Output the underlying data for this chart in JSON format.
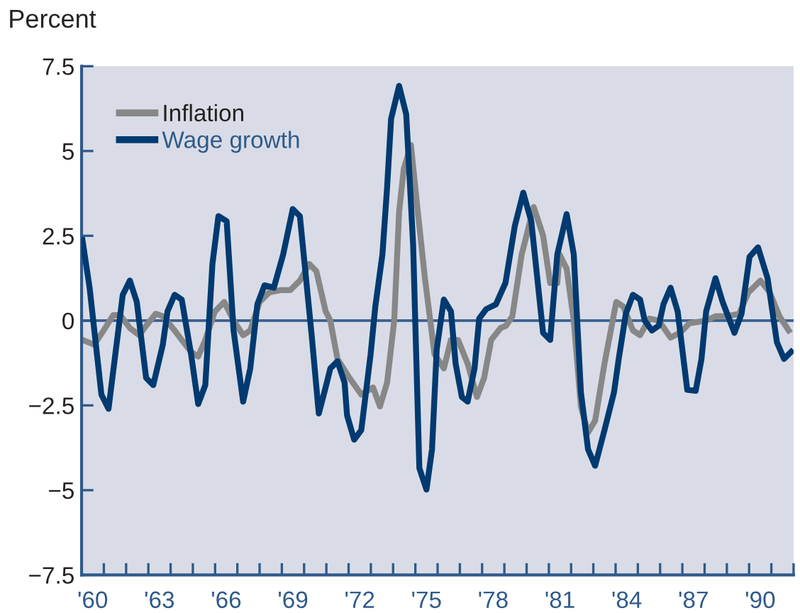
{
  "chart_data": {
    "type": "line",
    "ylabel": "Percent",
    "xlim": [
      1959.5,
      1991.5
    ],
    "ylim": [
      -7.5,
      7.5
    ],
    "yticks": [
      7.5,
      5,
      2.5,
      0,
      {
        "value": -2.5,
        "label": "−2.5"
      },
      {
        "value": -5,
        "label": "−5"
      },
      {
        "value": -7.5,
        "label": "−7.5"
      }
    ],
    "xticks": [
      {
        "value": 1959.5,
        "label": null
      },
      {
        "value": 1960.5,
        "label": null
      },
      {
        "value": 1961.5,
        "label": null
      },
      {
        "value": 1962.5,
        "label": null
      },
      {
        "value": 1963.5,
        "label": null
      },
      {
        "value": 1964.5,
        "label": null
      },
      {
        "value": 1965.5,
        "label": null
      },
      {
        "value": 1966.5,
        "label": null
      },
      {
        "value": 1967.5,
        "label": null
      },
      {
        "value": 1968.5,
        "label": null
      },
      {
        "value": 1969.5,
        "label": null
      },
      {
        "value": 1970.5,
        "label": null
      },
      {
        "value": 1971.5,
        "label": null
      },
      {
        "value": 1972.5,
        "label": null
      },
      {
        "value": 1973.5,
        "label": null
      },
      {
        "value": 1974.5,
        "label": null
      },
      {
        "value": 1975.5,
        "label": null
      },
      {
        "value": 1976.5,
        "label": null
      },
      {
        "value": 1977.5,
        "label": null
      },
      {
        "value": 1978.5,
        "label": null
      },
      {
        "value": 1979.5,
        "label": null
      },
      {
        "value": 1980.5,
        "label": null
      },
      {
        "value": 1981.5,
        "label": null
      },
      {
        "value": 1982.5,
        "label": null
      },
      {
        "value": 1983.5,
        "label": null
      },
      {
        "value": 1984.5,
        "label": null
      },
      {
        "value": 1985.5,
        "label": null
      },
      {
        "value": 1986.5,
        "label": null
      },
      {
        "value": 1987.5,
        "label": null
      },
      {
        "value": 1988.5,
        "label": null
      },
      {
        "value": 1989.5,
        "label": null
      },
      {
        "value": 1990.5,
        "label": null
      },
      {
        "value": 1991.5,
        "label": null
      },
      {
        "value": 1960,
        "label": "'60"
      },
      {
        "value": 1963,
        "label": "'63"
      },
      {
        "value": 1966,
        "label": "'66"
      },
      {
        "value": 1969,
        "label": "'69"
      },
      {
        "value": 1972,
        "label": "'72"
      },
      {
        "value": 1975,
        "label": "'75"
      },
      {
        "value": 1978,
        "label": "'78"
      },
      {
        "value": 1981,
        "label": "'81"
      },
      {
        "value": 1984,
        "label": "'84"
      },
      {
        "value": 1987,
        "label": "'87"
      },
      {
        "value": 1990,
        "label": "'90"
      }
    ],
    "grid": false,
    "legend": "top left",
    "line_style": "solid",
    "marker": "none",
    "ref_lines": [
      {
        "axis": "y",
        "value": 0,
        "color": "#3a6090"
      }
    ],
    "series": [
      {
        "name": "Inflation",
        "color": "#878787",
        "x": [
          1959.54,
          1960.07,
          1960.49,
          1960.92,
          1961.24,
          1961.67,
          1962.09,
          1962.4,
          1962.83,
          1963.15,
          1963.68,
          1964.0,
          1964.42,
          1964.74,
          1965.06,
          1965.49,
          1965.91,
          1966.33,
          1966.76,
          1967.08,
          1967.5,
          1967.93,
          1968.46,
          1968.88,
          1969.31,
          1969.73,
          1970.05,
          1970.47,
          1970.68,
          1971.0,
          1971.54,
          1972.07,
          1972.6,
          1972.91,
          1973.23,
          1973.55,
          1973.77,
          1973.98,
          1974.3,
          1974.61,
          1974.93,
          1975.36,
          1975.78,
          1976.1,
          1976.42,
          1976.85,
          1977.27,
          1977.59,
          1977.91,
          1978.33,
          1978.58,
          1978.86,
          1979.28,
          1979.82,
          1980.24,
          1980.56,
          1980.88,
          1980.98,
          1981.3,
          1981.62,
          1981.94,
          1982.26,
          1982.58,
          1983.0,
          1983.53,
          1983.85,
          1984.28,
          1984.6,
          1985.02,
          1985.44,
          1985.97,
          1986.4,
          1986.82,
          1987.57,
          1987.99,
          1988.52,
          1989.05,
          1989.47,
          1990.01,
          1990.43,
          1990.86,
          1991.28
        ],
        "values": [
          -0.57,
          -0.71,
          -0.29,
          0.16,
          0.16,
          -0.22,
          -0.43,
          -0.15,
          0.2,
          0.13,
          -0.29,
          -0.57,
          -0.92,
          -1.06,
          -0.57,
          0.27,
          0.55,
          0.0,
          -0.43,
          -0.29,
          0.55,
          0.83,
          0.9,
          0.9,
          1.18,
          1.67,
          1.46,
          0.27,
          0.0,
          -1.13,
          -1.69,
          -2.18,
          -1.97,
          -2.53,
          -1.83,
          0.0,
          3.21,
          4.47,
          5.18,
          3.21,
          1.25,
          -0.99,
          -1.41,
          -0.57,
          -0.57,
          -1.27,
          -2.25,
          -1.69,
          -0.57,
          -0.22,
          -0.15,
          0.13,
          1.95,
          3.35,
          2.51,
          1.11,
          1.11,
          1.95,
          1.53,
          0.0,
          -2.53,
          -3.3,
          -2.95,
          -1.27,
          0.55,
          0.41,
          -0.29,
          -0.43,
          0.06,
          0.0,
          -0.5,
          -0.36,
          -0.08,
          0.0,
          0.13,
          0.13,
          0.2,
          0.83,
          1.18,
          0.83,
          0.13,
          -0.29
        ]
      },
      {
        "name": "Wage growth",
        "color": "#003a70",
        "x": [
          1959.54,
          1959.86,
          1960.39,
          1960.71,
          1961.35,
          1961.67,
          1961.98,
          1962.4,
          1962.72,
          1963.15,
          1963.36,
          1963.68,
          1964.0,
          1964.42,
          1964.74,
          1965.06,
          1965.38,
          1965.65,
          1966.02,
          1966.33,
          1966.76,
          1967.08,
          1967.4,
          1967.72,
          1968.14,
          1968.56,
          1968.99,
          1969.31,
          1969.84,
          1970.16,
          1970.47,
          1970.68,
          1971.0,
          1971.32,
          1971.43,
          1971.75,
          1972.07,
          1972.49,
          1972.7,
          1973.02,
          1973.23,
          1973.41,
          1973.77,
          1974.09,
          1974.4,
          1974.68,
          1975.0,
          1975.25,
          1975.46,
          1975.78,
          1976.1,
          1976.31,
          1976.59,
          1976.85,
          1977.16,
          1977.37,
          1977.69,
          1978.12,
          1978.55,
          1978.97,
          1979.35,
          1979.71,
          1980.24,
          1980.56,
          1980.88,
          1981.3,
          1981.62,
          1981.94,
          1982.26,
          1982.58,
          1983.0,
          1983.43,
          1983.64,
          1983.96,
          1984.28,
          1984.6,
          1984.81,
          1985.13,
          1985.44,
          1985.65,
          1985.97,
          1986.29,
          1986.72,
          1987.1,
          1987.36,
          1987.57,
          1987.99,
          1988.31,
          1988.84,
          1989.16,
          1989.52,
          1989.9,
          1990.33,
          1990.75,
          1991.07,
          1991.39
        ],
        "values": [
          2.37,
          0.97,
          -2.18,
          -2.6,
          0.76,
          1.18,
          0.55,
          -1.69,
          -1.9,
          -0.71,
          0.27,
          0.76,
          0.62,
          -0.99,
          -2.46,
          -1.9,
          1.67,
          3.08,
          2.93,
          -0.29,
          -2.39,
          -1.41,
          0.48,
          1.04,
          0.97,
          1.95,
          3.29,
          3.08,
          -0.43,
          -2.74,
          -1.96,
          -1.41,
          -1.2,
          -1.83,
          -2.79,
          -3.51,
          -3.23,
          -0.99,
          0.41,
          1.95,
          3.92,
          5.95,
          6.92,
          6.08,
          2.24,
          -4.35,
          -4.98,
          -3.79,
          -0.85,
          0.62,
          0.27,
          -1.27,
          -2.25,
          -2.39,
          -1.41,
          0.06,
          0.34,
          0.48,
          1.11,
          2.79,
          3.77,
          2.93,
          -0.36,
          -0.57,
          1.95,
          3.14,
          1.95,
          -2.11,
          -3.79,
          -4.28,
          -3.23,
          -2.11,
          -1.13,
          0.2,
          0.76,
          0.62,
          0.0,
          -0.29,
          -0.15,
          0.48,
          0.97,
          0.27,
          -2.04,
          -2.07,
          -1.13,
          0.27,
          1.25,
          0.55,
          -0.36,
          0.2,
          1.88,
          2.16,
          1.25,
          -0.64,
          -1.13,
          -0.92
        ]
      }
    ]
  }
}
